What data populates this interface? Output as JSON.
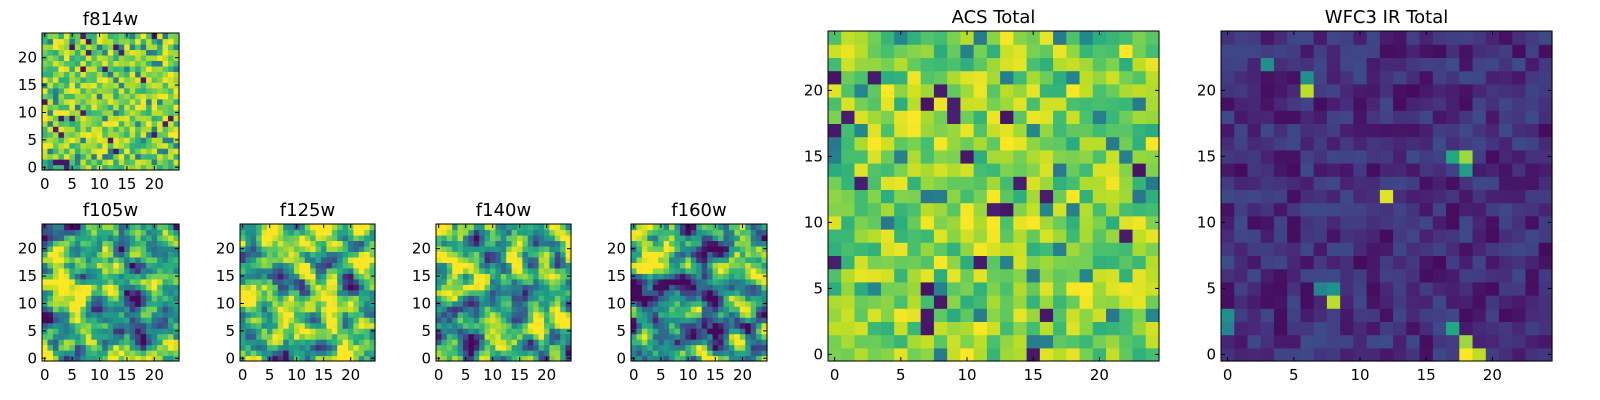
{
  "chart_data": [
    {
      "type": "heatmap",
      "title": "f814w",
      "colormap": "viridis",
      "x_ticks": [
        0,
        5,
        10,
        15,
        20
      ],
      "y_ticks": [
        0,
        5,
        10,
        15,
        20
      ],
      "xlim": [
        -0.5,
        24.5
      ],
      "ylim": [
        -0.5,
        24.5
      ],
      "grid": [
        25,
        25
      ],
      "value_range": [
        0,
        1
      ],
      "pixels": "random field, mostly high (green-yellow), few dark pixels"
    },
    {
      "type": "heatmap",
      "title": "f105w",
      "colormap": "viridis",
      "x_ticks": [
        0,
        5,
        10,
        15,
        20
      ],
      "y_ticks": [
        0,
        5,
        10,
        15,
        20
      ],
      "xlim": [
        -0.5,
        24.5
      ],
      "ylim": [
        -0.5,
        24.5
      ],
      "grid": [
        25,
        25
      ],
      "value_range": [
        0,
        1
      ],
      "pixels": "smooth random field, mostly green-yellow"
    },
    {
      "type": "heatmap",
      "title": "f125w",
      "colormap": "viridis",
      "x_ticks": [
        0,
        5,
        10,
        15,
        20
      ],
      "y_ticks": [
        0,
        5,
        10,
        15,
        20
      ],
      "xlim": [
        -0.5,
        24.5
      ],
      "ylim": [
        -0.5,
        24.5
      ],
      "grid": [
        25,
        25
      ],
      "value_range": [
        0,
        1
      ],
      "pixels": "smooth random field, mostly green-yellow"
    },
    {
      "type": "heatmap",
      "title": "f140w",
      "colormap": "viridis",
      "x_ticks": [
        0,
        5,
        10,
        15,
        20
      ],
      "y_ticks": [
        0,
        5,
        10,
        15,
        20
      ],
      "xlim": [
        -0.5,
        24.5
      ],
      "ylim": [
        -0.5,
        24.5
      ],
      "grid": [
        25,
        25
      ],
      "value_range": [
        0,
        1
      ],
      "pixels": "smooth random field, mostly green-yellow"
    },
    {
      "type": "heatmap",
      "title": "f160w",
      "colormap": "viridis",
      "x_ticks": [
        0,
        5,
        10,
        15,
        20
      ],
      "y_ticks": [
        0,
        5,
        10,
        15,
        20
      ],
      "xlim": [
        -0.5,
        24.5
      ],
      "ylim": [
        -0.5,
        24.5
      ],
      "grid": [
        25,
        25
      ],
      "value_range": [
        0,
        1
      ],
      "pixels": "smooth random field, mixed green-teal with dark patches"
    },
    {
      "type": "heatmap",
      "title": "ACS Total",
      "colormap": "viridis",
      "x_ticks": [
        0,
        5,
        10,
        15,
        20
      ],
      "y_ticks": [
        0,
        5,
        10,
        15,
        20
      ],
      "xlim": [
        -0.5,
        24.5
      ],
      "ylim": [
        -0.5,
        24.5
      ],
      "grid": [
        25,
        25
      ],
      "value_range": [
        0,
        1
      ],
      "pixels": "random field, mostly green-yellow, scattered dark pixels"
    },
    {
      "type": "heatmap",
      "title": "WFC3 IR Total",
      "colormap": "viridis",
      "x_ticks": [
        0,
        5,
        10,
        15,
        20
      ],
      "y_ticks": [
        0,
        5,
        10,
        15,
        20
      ],
      "xlim": [
        -0.5,
        24.5
      ],
      "ylim": [
        -0.5,
        24.5
      ],
      "grid": [
        25,
        25
      ],
      "value_range": [
        0,
        1
      ],
      "pixels": "dark purple background with bright sources",
      "bright_sources": [
        {
          "x": 18,
          "y": 15,
          "value": 0.85
        },
        {
          "x": 17,
          "y": 15,
          "value": 0.6
        },
        {
          "x": 18,
          "y": 14,
          "value": 0.55
        },
        {
          "x": 12,
          "y": 12,
          "value": 0.95
        },
        {
          "x": 6,
          "y": 20,
          "value": 0.9
        },
        {
          "x": 6,
          "y": 21,
          "value": 0.5
        },
        {
          "x": 3,
          "y": 22,
          "value": 0.5
        },
        {
          "x": 8,
          "y": 4,
          "value": 0.9
        },
        {
          "x": 8,
          "y": 5,
          "value": 0.5
        },
        {
          "x": 7,
          "y": 5,
          "value": 0.45
        },
        {
          "x": 18,
          "y": 0,
          "value": 1.0
        },
        {
          "x": 19,
          "y": 0,
          "value": 0.9
        },
        {
          "x": 18,
          "y": 1,
          "value": 0.85
        },
        {
          "x": 17,
          "y": 2,
          "value": 0.6
        },
        {
          "x": 0,
          "y": 3,
          "value": 0.5
        },
        {
          "x": 0,
          "y": 2,
          "value": 0.45
        }
      ]
    }
  ]
}
